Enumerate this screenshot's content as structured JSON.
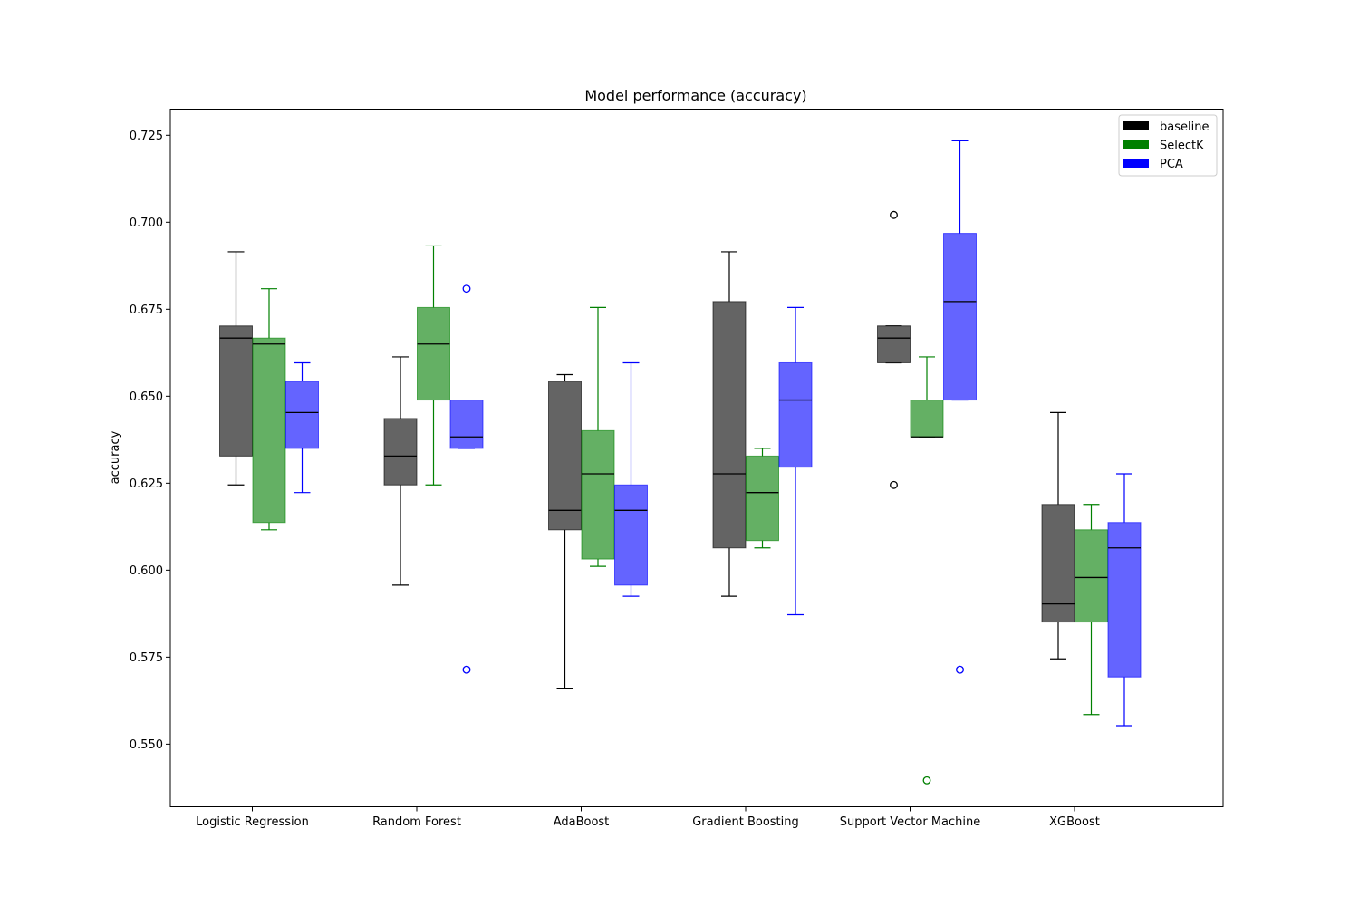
{
  "chart_data": {
    "type": "boxplot",
    "title": "Model performance (accuracy)",
    "xlabel": "",
    "ylabel": "accuracy",
    "ylim": [
      0.532,
      0.7325
    ],
    "yticks": [
      0.55,
      0.575,
      0.6,
      0.625,
      0.65,
      0.675,
      0.7,
      0.725
    ],
    "ytick_labels": [
      "0.550",
      "0.575",
      "0.600",
      "0.625",
      "0.650",
      "0.675",
      "0.700",
      "0.725"
    ],
    "categories": [
      "Logistic Regression",
      "Random Forest",
      "AdaBoost",
      "Gradient Boosting",
      "Support Vector Machine",
      "XGBoost"
    ],
    "legend_position": "top-right",
    "grid": false,
    "series": [
      {
        "name": "baseline",
        "color": "#000000",
        "fill": "#646464",
        "boxes": [
          {
            "whislo": 0.6245,
            "q1": 0.6328,
            "med": 0.6667,
            "q3": 0.6702,
            "whishi": 0.6915,
            "fliers": []
          },
          {
            "whislo": 0.5957,
            "q1": 0.6245,
            "med": 0.6328,
            "q3": 0.6436,
            "whishi": 0.6613,
            "fliers": []
          },
          {
            "whislo": 0.5661,
            "q1": 0.6116,
            "med": 0.6172,
            "q3": 0.6543,
            "whishi": 0.6562,
            "fliers": []
          },
          {
            "whislo": 0.5925,
            "q1": 0.6064,
            "med": 0.6277,
            "q3": 0.6772,
            "whishi": 0.6915,
            "fliers": []
          },
          {
            "whislo": 0.6596,
            "q1": 0.6596,
            "med": 0.6667,
            "q3": 0.6702,
            "whishi": 0.6702,
            "fliers": [
              0.7021,
              0.6245
            ]
          },
          {
            "whislo": 0.5745,
            "q1": 0.5851,
            "med": 0.5903,
            "q3": 0.6189,
            "whishi": 0.6453,
            "fliers": []
          }
        ]
      },
      {
        "name": "SelectK",
        "color": "#008000",
        "fill": "#64b064",
        "boxes": [
          {
            "whislo": 0.6116,
            "q1": 0.6137,
            "med": 0.665,
            "q3": 0.6667,
            "whishi": 0.6809,
            "fliers": []
          },
          {
            "whislo": 0.6245,
            "q1": 0.6489,
            "med": 0.665,
            "q3": 0.6755,
            "whishi": 0.6932,
            "fliers": []
          },
          {
            "whislo": 0.6011,
            "q1": 0.6032,
            "med": 0.6277,
            "q3": 0.6401,
            "whishi": 0.6755,
            "fliers": []
          },
          {
            "whislo": 0.6064,
            "q1": 0.6085,
            "med": 0.6223,
            "q3": 0.6328,
            "whishi": 0.635,
            "fliers": []
          },
          {
            "whislo": 0.6383,
            "q1": 0.6383,
            "med": 0.6383,
            "q3": 0.6489,
            "whishi": 0.6613,
            "fliers": [
              0.5396
            ]
          },
          {
            "whislo": 0.5585,
            "q1": 0.5851,
            "med": 0.5979,
            "q3": 0.6116,
            "whishi": 0.6189,
            "fliers": []
          }
        ]
      },
      {
        "name": "PCA",
        "color": "#0000ff",
        "fill": "#6464ff",
        "boxes": [
          {
            "whislo": 0.6223,
            "q1": 0.635,
            "med": 0.6453,
            "q3": 0.6543,
            "whishi": 0.6596,
            "fliers": []
          },
          {
            "whislo": 0.635,
            "q1": 0.635,
            "med": 0.6383,
            "q3": 0.6489,
            "whishi": 0.6489,
            "fliers": [
              0.6809,
              0.5714
            ]
          },
          {
            "whislo": 0.5925,
            "q1": 0.5957,
            "med": 0.6172,
            "q3": 0.6245,
            "whishi": 0.6596,
            "fliers": []
          },
          {
            "whislo": 0.5872,
            "q1": 0.6296,
            "med": 0.6489,
            "q3": 0.6596,
            "whishi": 0.6755,
            "fliers": []
          },
          {
            "whislo": 0.6489,
            "q1": 0.6489,
            "med": 0.6772,
            "q3": 0.6968,
            "whishi": 0.7234,
            "fliers": [
              0.5714
            ]
          },
          {
            "whislo": 0.5553,
            "q1": 0.5693,
            "med": 0.6064,
            "q3": 0.6137,
            "whishi": 0.6277,
            "fliers": []
          }
        ]
      }
    ]
  }
}
